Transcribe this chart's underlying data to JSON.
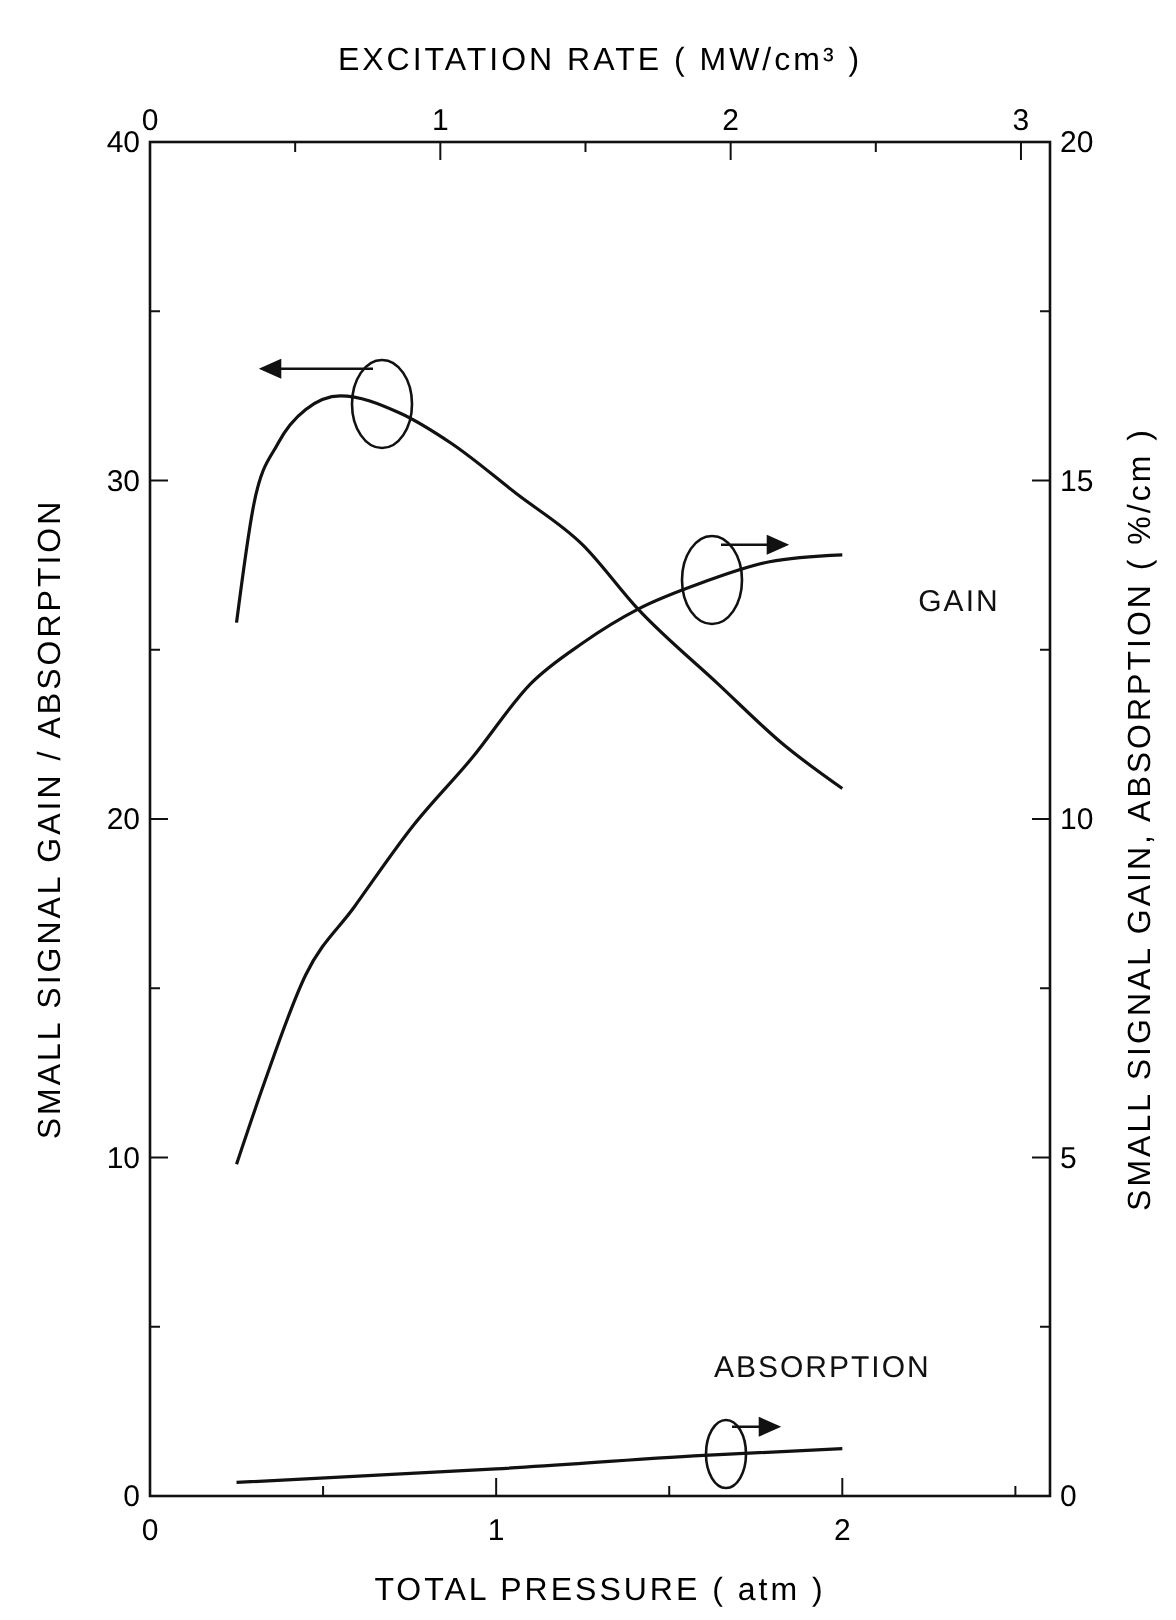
{
  "chart_data": {
    "type": "line",
    "xlabel": "TOTAL PRESSURE ( atm )",
    "x2label": "EXCITATION RATE ( MW/cm³ )",
    "ylabel": "SMALL SIGNAL GAIN / ABSORPTION",
    "y2label": "SMALL SIGNAL GAIN, ABSORPTION ( %/cm )",
    "xlim": [
      0,
      2.6
    ],
    "xticks": [
      0,
      {
        "value": 0.5,
        "label": null
      },
      1,
      {
        "value": 1.5,
        "label": null
      },
      2,
      {
        "value": 2.5,
        "label": null
      }
    ],
    "x2lim": [
      0,
      3.1
    ],
    "x2ticks": [
      0,
      {
        "value": 0.5,
        "label": null
      },
      1,
      {
        "value": 1.5,
        "label": null
      },
      2,
      {
        "value": 2.5,
        "label": null
      },
      3
    ],
    "ylim": [
      0,
      40
    ],
    "yticks": [
      0,
      {
        "value": 5,
        "label": null
      },
      10,
      {
        "value": 15,
        "label": null
      },
      20,
      {
        "value": 25,
        "label": null
      },
      30,
      {
        "value": 35,
        "label": null
      },
      40
    ],
    "y2lim": [
      0,
      20
    ],
    "y2ticks": [
      0,
      {
        "value": 2.5,
        "label": null
      },
      5,
      {
        "value": 7.5,
        "label": null
      },
      10,
      {
        "value": 12.5,
        "label": null
      },
      15,
      {
        "value": 17.5,
        "label": null
      },
      20
    ],
    "marker": "none",
    "line_style": "solid",
    "series": [
      {
        "color": "#111111",
        "x": [
          0.25,
          0.3,
          0.37,
          0.45,
          0.55,
          0.72,
          0.87,
          1.06,
          1.25,
          1.41,
          1.64,
          1.83,
          2.0
        ],
        "values": [
          25.8,
          29.3,
          31.1,
          32.1,
          32.5,
          32.0,
          31.1,
          29.6,
          28.1,
          26.2,
          24.0,
          22.2,
          20.9
        ]
      },
      {
        "name": "GAIN",
        "axis": "y2",
        "color": "#111111",
        "x": [
          0.25,
          0.33,
          0.45,
          0.59,
          0.76,
          0.93,
          1.1,
          1.25,
          1.41,
          1.6,
          1.79,
          2.0
        ],
        "values": [
          4.9,
          6.1,
          7.7,
          8.7,
          9.9,
          10.9,
          12.0,
          12.6,
          13.1,
          13.5,
          13.8,
          13.9
        ]
      },
      {
        "name": "ABSORPTION",
        "axis": "y2",
        "color": "#111111",
        "x": [
          0.25,
          1.0,
          1.6,
          2.0
        ],
        "values": [
          0.2,
          0.4,
          0.6,
          0.7
        ]
      }
    ]
  }
}
